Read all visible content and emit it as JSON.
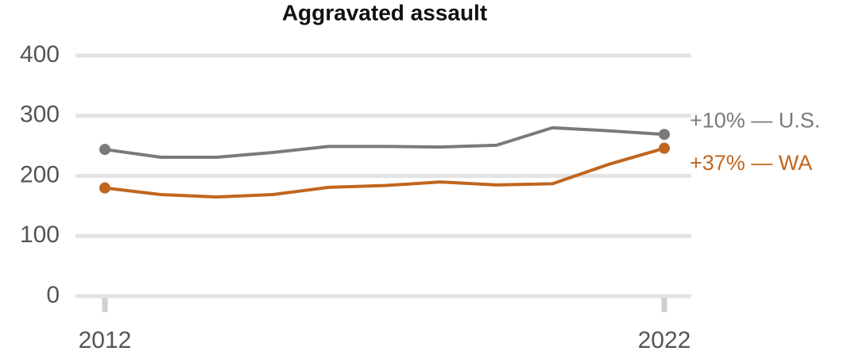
{
  "chart_data": {
    "type": "line",
    "title": "Aggravated assault",
    "x": [
      2012,
      2013,
      2014,
      2015,
      2016,
      2017,
      2018,
      2019,
      2020,
      2021,
      2022
    ],
    "series": [
      {
        "name": "+10% — U.S.",
        "color": "#7a7a7a",
        "values": [
          244,
          231,
          231,
          239,
          249,
          249,
          248,
          251,
          280,
          275,
          269
        ]
      },
      {
        "name": "+37% — WA",
        "color": "#c0661f",
        "values": [
          180,
          169,
          165,
          169,
          181,
          184,
          190,
          185,
          187,
          219,
          246
        ]
      }
    ],
    "xlim": [
      2012,
      2022
    ],
    "xticks": [
      2012,
      2022
    ],
    "ylim": [
      0,
      400
    ],
    "yticks": [
      0,
      100,
      200,
      300,
      400
    ],
    "grid": true
  }
}
